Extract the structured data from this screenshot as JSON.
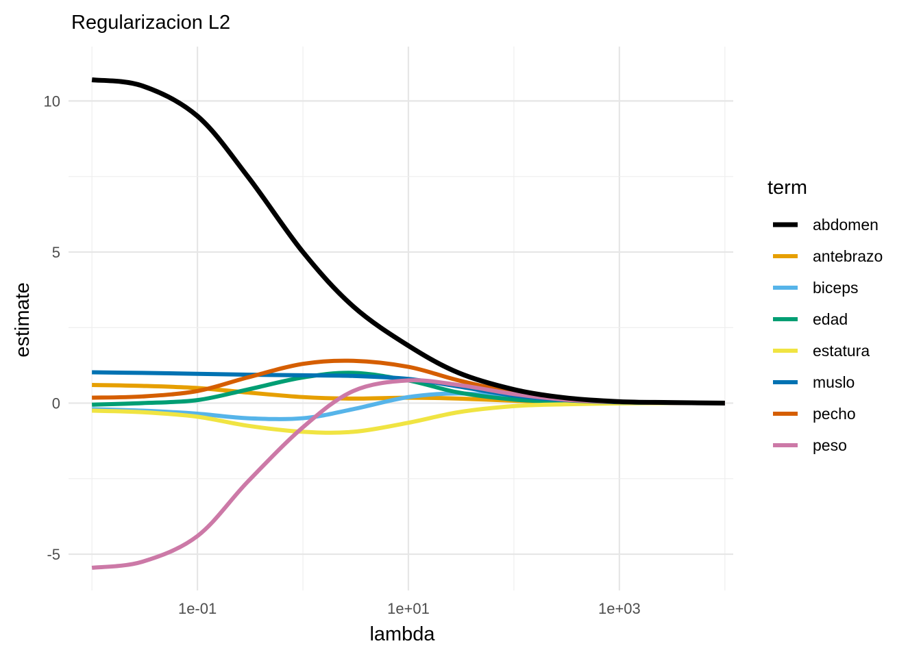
{
  "chart_data": {
    "type": "line",
    "title": "Regularizacion L2",
    "xlabel": "lambda",
    "ylabel": "estimate",
    "x_scale": "log10",
    "xlim": [
      0.006,
      12000
    ],
    "ylim": [
      -6.2,
      11.8
    ],
    "x_ticks": [
      {
        "value": 0.1,
        "label": "1e-01"
      },
      {
        "value": 10,
        "label": "1e+01"
      },
      {
        "value": 1000,
        "label": "1e+03"
      }
    ],
    "y_ticks": [
      {
        "value": -5,
        "label": "-5"
      },
      {
        "value": 0,
        "label": "0"
      },
      {
        "value": 5,
        "label": "5"
      },
      {
        "value": 10,
        "label": "10"
      }
    ],
    "grid": true,
    "legend": {
      "title": "term",
      "position": "right"
    },
    "x": [
      0.01,
      0.03,
      0.1,
      0.3,
      1,
      3,
      10,
      30,
      100,
      300,
      1000,
      3000,
      10000
    ],
    "series": [
      {
        "name": "abdomen",
        "color": "#000000",
        "values": [
          10.7,
          10.5,
          9.5,
          7.5,
          5.0,
          3.2,
          1.9,
          1.0,
          0.45,
          0.18,
          0.05,
          0.02,
          0.0
        ]
      },
      {
        "name": "antebrazo",
        "color": "#E69F00",
        "values": [
          0.6,
          0.57,
          0.5,
          0.35,
          0.2,
          0.15,
          0.18,
          0.15,
          0.08,
          0.03,
          0.01,
          0.0,
          0.0
        ]
      },
      {
        "name": "biceps",
        "color": "#56B4E9",
        "values": [
          -0.2,
          -0.25,
          -0.35,
          -0.5,
          -0.5,
          -0.2,
          0.2,
          0.32,
          0.2,
          0.08,
          0.03,
          0.01,
          0.0
        ]
      },
      {
        "name": "edad",
        "color": "#009E73",
        "values": [
          -0.05,
          0.0,
          0.1,
          0.45,
          0.85,
          1.0,
          0.75,
          0.35,
          0.12,
          0.04,
          0.01,
          0.0,
          0.0
        ]
      },
      {
        "name": "estatura",
        "color": "#F0E442",
        "values": [
          -0.25,
          -0.3,
          -0.45,
          -0.75,
          -0.95,
          -0.95,
          -0.65,
          -0.3,
          -0.1,
          -0.04,
          -0.01,
          0.0,
          0.0
        ]
      },
      {
        "name": "muslo",
        "color": "#0072B2",
        "values": [
          1.02,
          1.0,
          0.97,
          0.94,
          0.92,
          0.9,
          0.8,
          0.55,
          0.25,
          0.1,
          0.03,
          0.01,
          0.0
        ]
      },
      {
        "name": "pecho",
        "color": "#D55E00",
        "values": [
          0.18,
          0.22,
          0.4,
          0.85,
          1.3,
          1.4,
          1.2,
          0.75,
          0.35,
          0.12,
          0.04,
          0.01,
          0.0
        ]
      },
      {
        "name": "peso",
        "color": "#CC79A7",
        "values": [
          -5.45,
          -5.25,
          -4.4,
          -2.6,
          -0.8,
          0.4,
          0.75,
          0.6,
          0.3,
          0.12,
          0.04,
          0.01,
          0.0
        ]
      }
    ]
  }
}
